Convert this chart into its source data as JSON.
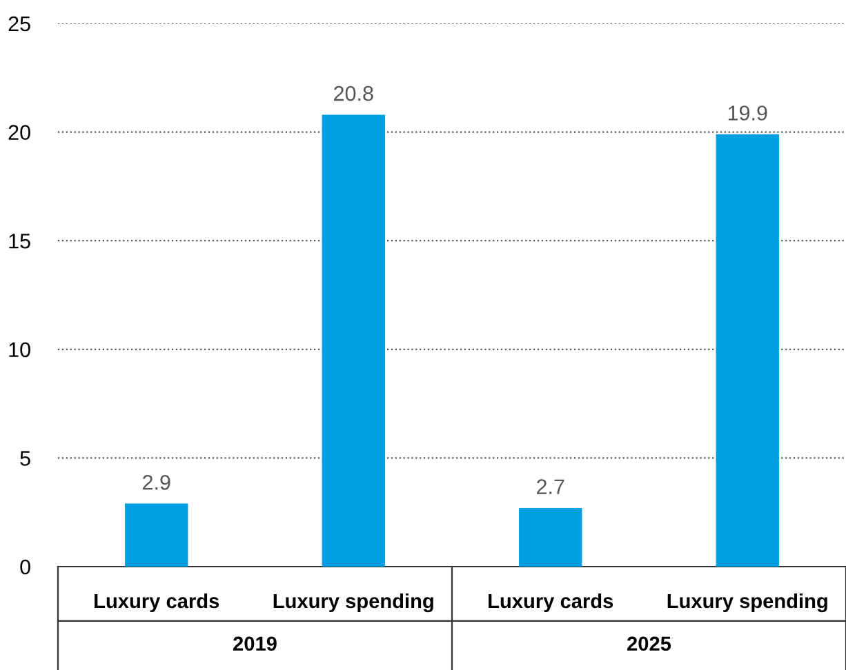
{
  "chart_data": {
    "type": "bar",
    "categories": [
      "Luxury cards",
      "Luxury spending",
      "Luxury cards",
      "Luxury spending"
    ],
    "values": [
      2.9,
      20.8,
      2.7,
      19.9
    ],
    "color": "#009fe3",
    "ylim": [
      0,
      25
    ],
    "yticks": [
      0,
      5,
      10,
      15,
      20,
      25
    ],
    "grid": "y",
    "data_labels": true,
    "annotations": [
      "2019",
      "2025"
    ]
  }
}
